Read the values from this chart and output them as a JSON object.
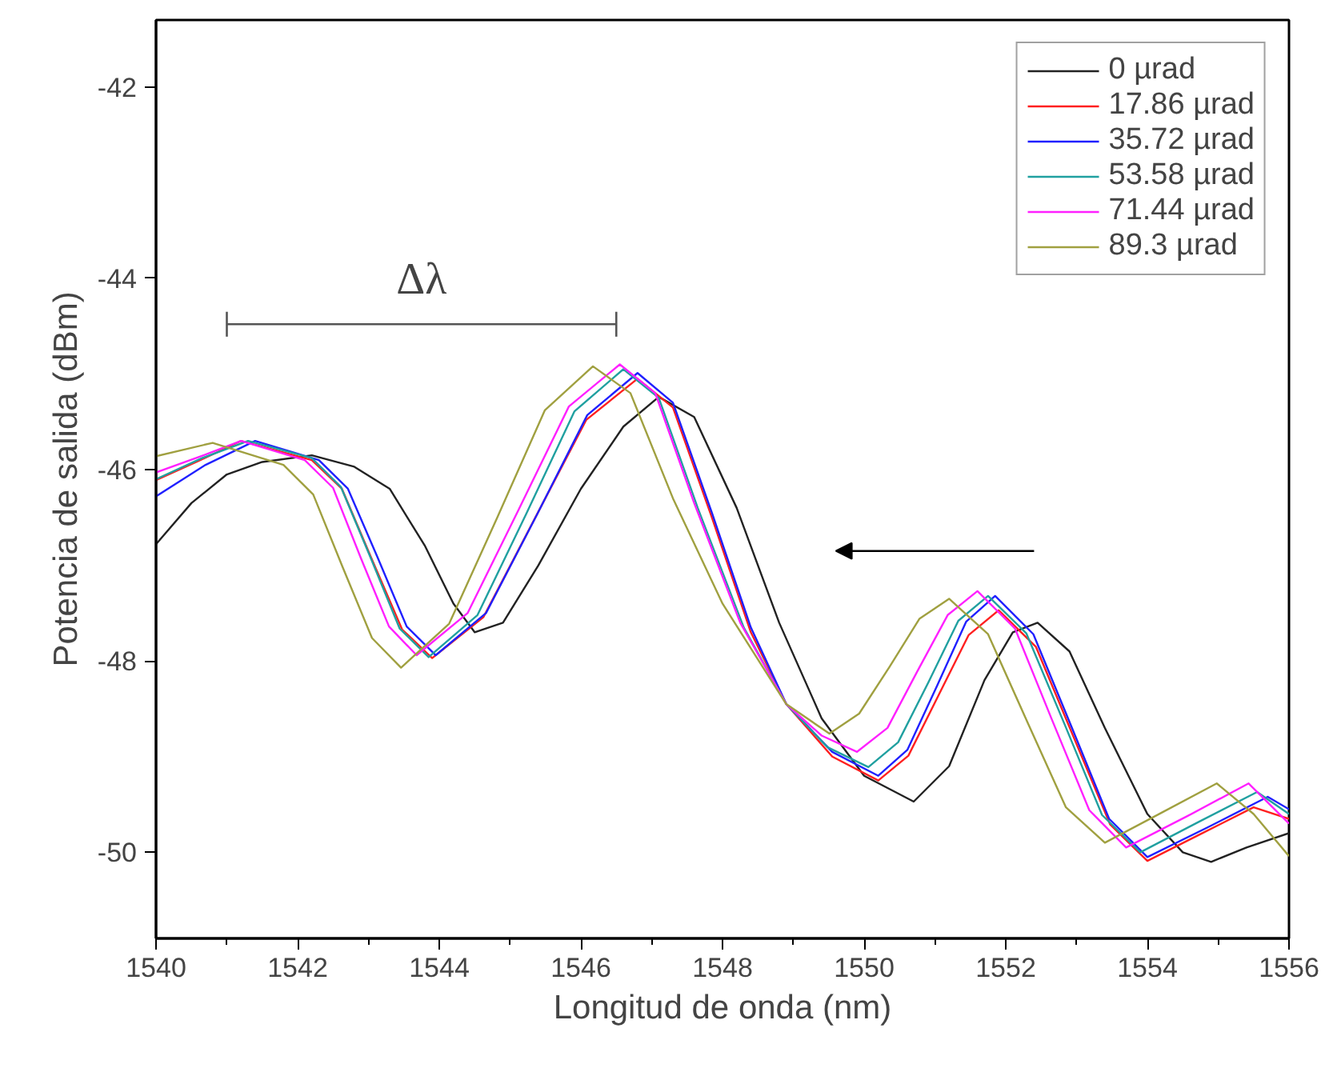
{
  "chart_data": {
    "type": "line",
    "xlabel": "Longitud de onda (nm)",
    "ylabel": "Potencia de salida (dBm)",
    "xlim": [
      1540,
      1556
    ],
    "ylim": [
      -50.9,
      -41.3
    ],
    "xticks": [
      1540,
      1542,
      1544,
      1546,
      1548,
      1550,
      1552,
      1554,
      1556
    ],
    "yticks": [
      -42,
      -44,
      -46,
      -48,
      -50
    ],
    "grid": false,
    "legend": "top right",
    "marker": "none",
    "line_style": "solid",
    "annotations": [
      {
        "text": "Δλ",
        "x": 1543.75,
        "y": -44.48
      }
    ],
    "series": [
      {
        "name": "0 µrad",
        "color": "#222222",
        "x": [
          1540,
          1540.5,
          1541,
          1541.5,
          1542.2,
          1542.8,
          1543.3,
          1543.8,
          1544.2,
          1544.5,
          1544.9,
          1545.4,
          1546,
          1546.6,
          1547.1,
          1547.6,
          1548.2,
          1548.8,
          1549.4,
          1550,
          1550.7,
          1551.2,
          1551.7,
          1552.1,
          1552.45,
          1552.9,
          1553.4,
          1554,
          1554.5,
          1554.9,
          1555.4,
          1556
        ],
        "values": [
          -46.78,
          -46.35,
          -46.05,
          -45.92,
          -45.85,
          -45.97,
          -46.2,
          -46.8,
          -47.4,
          -47.7,
          -47.6,
          -47.0,
          -46.2,
          -45.55,
          -45.24,
          -45.45,
          -46.4,
          -47.6,
          -48.6,
          -49.2,
          -49.47,
          -49.1,
          -48.2,
          -47.7,
          -47.6,
          -47.9,
          -48.7,
          -49.6,
          -50.0,
          -50.1,
          -49.95,
          -49.8
        ]
      },
      {
        "name": "17.86 µrad",
        "color": "#ff2020",
        "x": [
          1540,
          1540.6,
          1541.2,
          1542.2,
          1542.625,
          1543.05,
          1543.475,
          1543.9,
          1544.625,
          1545.35,
          1546.075,
          1546.8,
          1547.3,
          1547.85,
          1548.4,
          1548.9,
          1549.55,
          1550.2,
          1550.625,
          1551.05,
          1551.475,
          1551.9,
          1552.425,
          1552.95,
          1553.475,
          1554.0,
          1554.75,
          1555.5,
          1556
        ],
        "values": [
          -46.11,
          -45.91,
          -45.7,
          -45.9,
          -46.2,
          -46.94,
          -47.67,
          -47.97,
          -47.54,
          -46.51,
          -45.48,
          -45.05,
          -45.35,
          -46.5,
          -47.7,
          -48.45,
          -49.0,
          -49.25,
          -48.99,
          -48.36,
          -47.73,
          -47.47,
          -47.85,
          -48.78,
          -49.71,
          -50.09,
          -49.81,
          -49.53,
          -49.65
        ]
      },
      {
        "name": "35.72 µrad",
        "color": "#2020ff",
        "x": [
          1540,
          1540.7,
          1541.4,
          1542.3,
          1542.71,
          1543.13,
          1543.54,
          1543.95,
          1544.66,
          1545.38,
          1546.09,
          1546.8,
          1547.3,
          1547.85,
          1548.4,
          1548.9,
          1549.55,
          1550.2,
          1550.61,
          1551.03,
          1551.44,
          1551.85,
          1552.39,
          1552.93,
          1553.46,
          1554.0,
          1554.85,
          1555.7,
          1556
        ],
        "values": [
          -46.28,
          -45.95,
          -45.7,
          -45.9,
          -46.2,
          -46.92,
          -47.64,
          -47.94,
          -47.5,
          -46.47,
          -45.43,
          -44.99,
          -45.3,
          -46.45,
          -47.65,
          -48.45,
          -48.95,
          -49.2,
          -48.93,
          -48.26,
          -47.59,
          -47.32,
          -47.72,
          -48.69,
          -49.65,
          -50.05,
          -49.74,
          -49.42,
          -49.55
        ]
      },
      {
        "name": "53.58 µrad",
        "color": "#20a0a0",
        "x": [
          1540,
          1540.65,
          1541.3,
          1542.2,
          1542.61,
          1543.03,
          1543.44,
          1543.85,
          1544.54,
          1545.23,
          1545.91,
          1546.6,
          1547.1,
          1547.65,
          1548.3,
          1548.9,
          1549.48,
          1550.06,
          1550.48,
          1550.91,
          1551.33,
          1551.75,
          1552.29,
          1552.83,
          1553.36,
          1553.9,
          1554.73,
          1555.55,
          1556
        ],
        "values": [
          -46.1,
          -45.88,
          -45.7,
          -45.88,
          -46.18,
          -46.92,
          -47.66,
          -47.96,
          -47.52,
          -46.46,
          -45.39,
          -44.95,
          -45.25,
          -46.4,
          -47.65,
          -48.45,
          -48.9,
          -49.11,
          -48.85,
          -48.22,
          -47.58,
          -47.32,
          -47.71,
          -48.66,
          -49.61,
          -50.0,
          -49.68,
          -49.37,
          -49.6
        ]
      },
      {
        "name": "71.44 µrad",
        "color": "#ff20ff",
        "x": [
          1540,
          1540.6,
          1541.2,
          1542.1,
          1542.5,
          1542.89,
          1543.29,
          1543.68,
          1544.4,
          1545.12,
          1545.83,
          1546.55,
          1547.05,
          1547.6,
          1548.25,
          1548.9,
          1549.4,
          1549.9,
          1550.33,
          1550.75,
          1551.18,
          1551.6,
          1552.13,
          1552.65,
          1553.18,
          1553.7,
          1554.57,
          1555.43,
          1556
        ],
        "values": [
          -46.03,
          -45.87,
          -45.7,
          -45.9,
          -46.19,
          -46.92,
          -47.64,
          -47.94,
          -47.5,
          -46.42,
          -45.34,
          -44.9,
          -45.2,
          -46.35,
          -47.6,
          -48.45,
          -48.78,
          -48.95,
          -48.7,
          -48.11,
          -47.52,
          -47.27,
          -47.66,
          -48.61,
          -49.56,
          -49.95,
          -49.62,
          -49.28,
          -49.7
        ]
      },
      {
        "name": "89.3 µrad",
        "color": "#a0a040",
        "x": [
          1540,
          1540.8,
          1541.8,
          1542.22,
          1542.63,
          1543.05,
          1543.46,
          1544.14,
          1544.82,
          1545.49,
          1546.17,
          1546.7,
          1547.3,
          1548.0,
          1548.9,
          1549.51,
          1549.93,
          1550.36,
          1550.78,
          1551.2,
          1551.75,
          1552.3,
          1552.85,
          1553.4,
          1554.19,
          1554.98,
          1555.5,
          1556
        ],
        "values": [
          -45.86,
          -45.72,
          -45.95,
          -46.26,
          -47.01,
          -47.76,
          -48.07,
          -47.61,
          -46.5,
          -45.38,
          -44.92,
          -45.2,
          -46.3,
          -47.4,
          -48.45,
          -48.76,
          -48.55,
          -48.06,
          -47.56,
          -47.35,
          -47.72,
          -48.63,
          -49.53,
          -49.9,
          -49.59,
          -49.28,
          -49.6,
          -50.04
        ]
      },
      {
        "type": "line",
        "color": "#555555",
        "x": [
          1541.0,
          1546.5
        ],
        "values": [
          -44.48,
          -44.48
        ],
        "errors": [
          0.13,
          0.13
        ]
      }
    ]
  }
}
